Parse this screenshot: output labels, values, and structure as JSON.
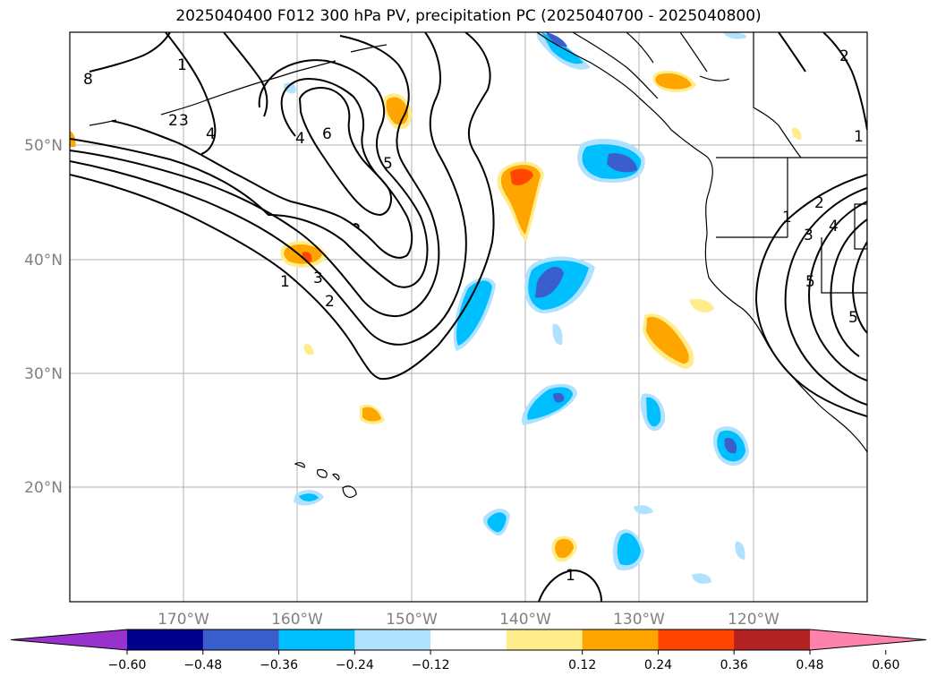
{
  "title": "2025040400 F012 300 hPa PV, precipitation PC (2025040700 - 2025040800)",
  "lat_labels": [
    "50°N",
    "40°N",
    "30°N",
    "20°N"
  ],
  "lon_labels": [
    "170°W",
    "160°W",
    "150°W",
    "140°W",
    "130°W",
    "120°W"
  ],
  "colorbar": {
    "ticks": [
      "−0.60",
      "−0.48",
      "−0.36",
      "−0.24",
      "−0.12",
      "0.12",
      "0.24",
      "0.36",
      "0.48",
      "0.60"
    ],
    "colors": [
      "#9932cc",
      "#00008b",
      "#3a5fcd",
      "#00bfff",
      "#b0e2ff",
      "#ffffff",
      "#ffec8b",
      "#ffa500",
      "#ff4500",
      "#b22222",
      "#ff82ab"
    ]
  },
  "contour_labels": [
    "8",
    "1",
    "2",
    "3",
    "4",
    "4",
    "6",
    "5",
    "3",
    "2",
    "1",
    "1",
    "2",
    "3",
    "4",
    "5",
    "5",
    "1",
    "2"
  ]
}
